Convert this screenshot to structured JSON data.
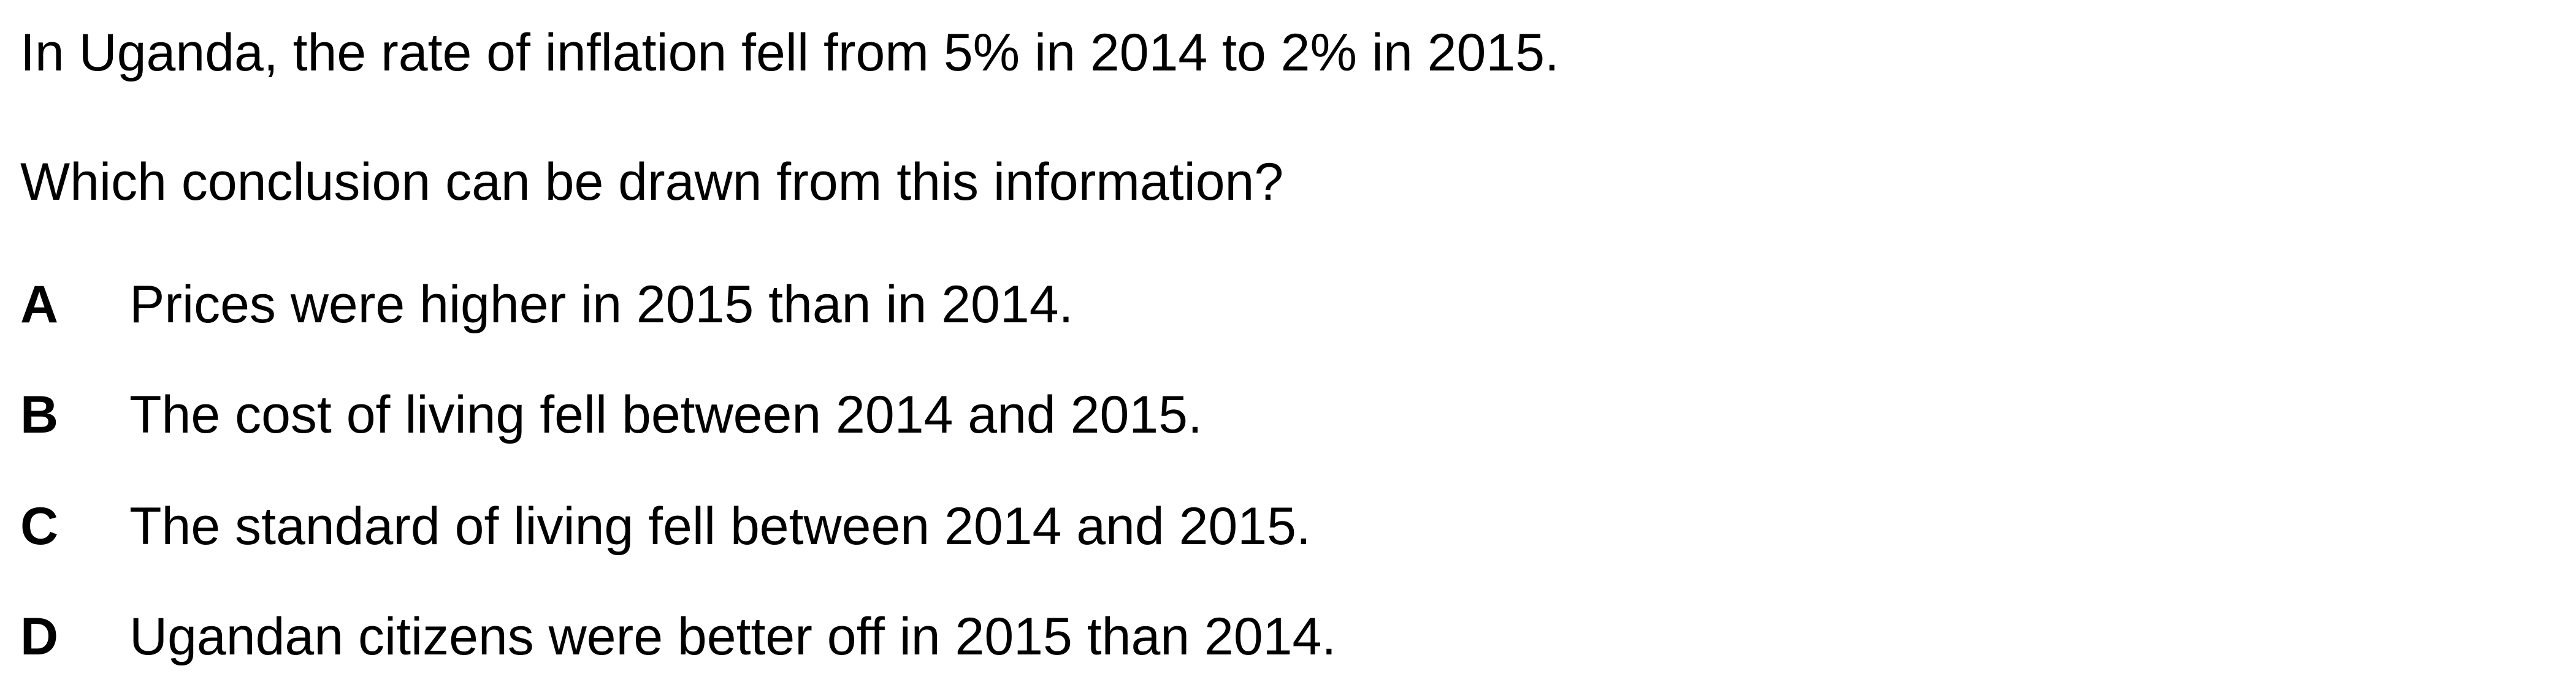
{
  "stem": "In Uganda, the rate of inflation fell from 5% in 2014 to 2% in 2015.",
  "question": "Which conclusion can be drawn from this information?",
  "options": [
    {
      "letter": "A",
      "text": "Prices were higher in 2015 than in 2014."
    },
    {
      "letter": "B",
      "text": "The cost of living fell between 2014 and 2015."
    },
    {
      "letter": "C",
      "text": "The standard of living fell between 2014 and 2015."
    },
    {
      "letter": "D",
      "text": "Ugandan citizens were better off in 2015 than 2014."
    }
  ]
}
